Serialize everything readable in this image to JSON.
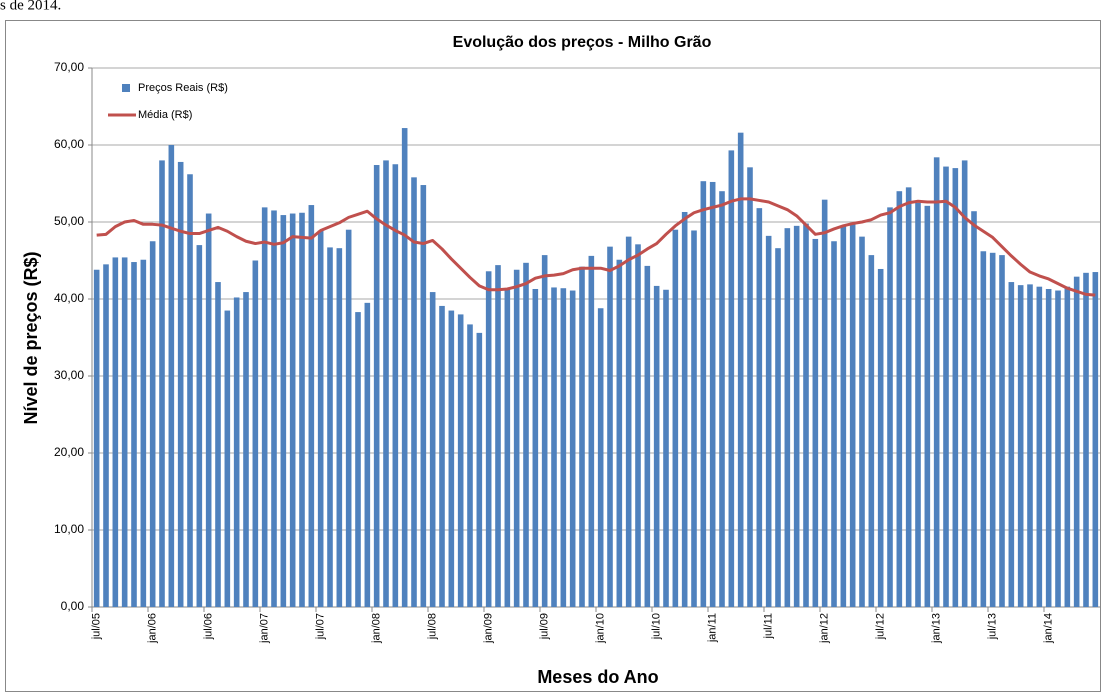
{
  "header_fragment": "s de 2014.",
  "chart_data": {
    "type": "bar",
    "title": "Evolução dos preços - Milho Grão",
    "x_label": "Meses do Ano",
    "y_label": "Nível de preços (R$)",
    "categories": [
      "jul/05",
      null,
      null,
      null,
      null,
      null,
      "jan/06",
      null,
      null,
      null,
      null,
      null,
      "jul/06",
      null,
      null,
      null,
      null,
      null,
      "jan/07",
      null,
      null,
      null,
      null,
      null,
      "jul/07",
      null,
      null,
      null,
      null,
      null,
      "jan/08",
      null,
      null,
      null,
      null,
      null,
      "jul/08",
      null,
      null,
      null,
      null,
      null,
      "jan/09",
      null,
      null,
      null,
      null,
      null,
      "jul/09",
      null,
      null,
      null,
      null,
      null,
      "jan/10",
      null,
      null,
      null,
      null,
      null,
      "jul/10",
      null,
      null,
      null,
      null,
      null,
      "jan/11",
      null,
      null,
      null,
      null,
      null,
      "jul/11",
      null,
      null,
      null,
      null,
      null,
      "jan/12",
      null,
      null,
      null,
      null,
      null,
      "jul/12",
      null,
      null,
      null,
      null,
      null,
      "jan/13",
      null,
      null,
      null,
      null,
      null,
      "jul/13",
      null,
      null,
      null,
      null,
      null,
      "jan/14",
      null,
      null,
      null,
      null,
      null
    ],
    "series": [
      {
        "name": "Preços Reais (R$)",
        "type": "bar",
        "color": "#4f81bd",
        "values": [
          43.8,
          44.5,
          45.4,
          45.4,
          44.8,
          45.1,
          47.5,
          58.0,
          60.0,
          57.8,
          56.2,
          47.0,
          51.1,
          42.2,
          38.5,
          40.2,
          40.9,
          45.0,
          51.9,
          51.5,
          50.9,
          51.1,
          51.2,
          52.2,
          48.9,
          46.7,
          46.6,
          49.0,
          38.3,
          39.5,
          57.4,
          58.0,
          57.5,
          62.2,
          55.8,
          54.8,
          40.9,
          39.1,
          38.5,
          38.0,
          36.7,
          35.6,
          43.6,
          44.4,
          41.3,
          43.8,
          44.7,
          41.3,
          45.7,
          41.5,
          41.4,
          41.1,
          44.2,
          45.6,
          38.8,
          46.8,
          45.1,
          48.1,
          47.1,
          44.3,
          41.7,
          41.2,
          49.0,
          51.3,
          48.9,
          55.3,
          55.2,
          54.0,
          59.3,
          61.6,
          57.1,
          51.8,
          48.2,
          46.6,
          49.2,
          49.5,
          49.8,
          47.8,
          52.9,
          47.5,
          49.5,
          49.8,
          48.1,
          45.7,
          43.9,
          51.9,
          54.0,
          54.5,
          52.5,
          52.1,
          58.4,
          57.2,
          57.0,
          58.0,
          51.4,
          46.2,
          46.0,
          45.7,
          42.2,
          41.8,
          41.9,
          41.6,
          41.3,
          41.1,
          41.6,
          42.9,
          43.4,
          43.5
        ]
      },
      {
        "name": "Média (R$)",
        "type": "line",
        "color": "#c0504d",
        "values": [
          48.3,
          48.4,
          49.4,
          50.0,
          50.2,
          49.7,
          49.7,
          49.6,
          49.2,
          48.8,
          48.5,
          48.5,
          48.9,
          49.3,
          48.8,
          48.1,
          47.5,
          47.2,
          47.4,
          47.1,
          47.3,
          48.1,
          48.0,
          47.9,
          48.9,
          49.4,
          49.9,
          50.6,
          51.0,
          51.4,
          50.4,
          49.6,
          48.9,
          48.3,
          47.4,
          47.2,
          47.6,
          46.5,
          45.2,
          44.0,
          42.8,
          41.7,
          41.2,
          41.2,
          41.3,
          41.6,
          42.0,
          42.7,
          43.0,
          43.1,
          43.3,
          43.8,
          44.0,
          44.0,
          44.0,
          43.7,
          44.3,
          45.1,
          45.7,
          46.5,
          47.2,
          48.4,
          49.5,
          50.4,
          51.2,
          51.6,
          51.9,
          52.2,
          52.7,
          53.0,
          53.0,
          52.8,
          52.6,
          52.1,
          51.6,
          50.8,
          49.6,
          48.4,
          48.6,
          49.1,
          49.5,
          49.8,
          50.0,
          50.3,
          50.9,
          51.2,
          52.0,
          52.5,
          52.7,
          52.6,
          52.6,
          52.7,
          51.9,
          50.6,
          49.6,
          48.8,
          48.0,
          46.8,
          45.6,
          44.5,
          43.5,
          43.0,
          42.6,
          42.0,
          41.4,
          41.0,
          40.6,
          40.5
        ]
      }
    ],
    "ylim": [
      0,
      70
    ],
    "yticks": [
      {
        "value": 0,
        "label": "0,00"
      },
      {
        "value": 10,
        "label": "10,00"
      },
      {
        "value": 20,
        "label": "20,00"
      },
      {
        "value": 30,
        "label": "30,00"
      },
      {
        "value": 40,
        "label": "40,00"
      },
      {
        "value": 50,
        "label": "50,00"
      },
      {
        "value": 60,
        "label": "60,00"
      },
      {
        "value": 70,
        "label": "70,00"
      }
    ],
    "grid": true,
    "legend": "top-left"
  }
}
